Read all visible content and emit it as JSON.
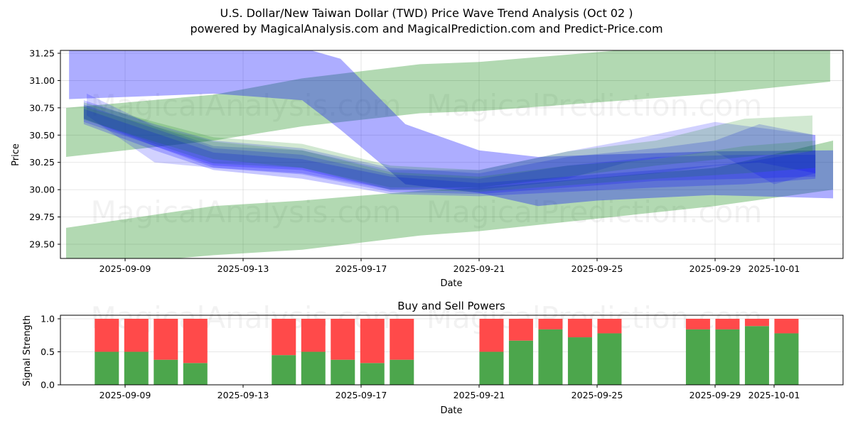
{
  "title_line1": "U.S. Dollar/New Taiwan Dollar (TWD) Price Wave Trend Analysis (Oct 02 )",
  "title_line2": "powered by MagicalAnalysis.com and MagicalPrediction.com and Predict-Price.com",
  "watermarks": [
    "MagicalAnalysis.com",
    "MagicalPrediction.com"
  ],
  "colors": {
    "blue_band": "#0000ff",
    "green_band": "#008000",
    "buy": "#4ca64c",
    "sell": "#ff4a4a"
  },
  "chart_data": [
    {
      "type": "area",
      "title": "",
      "xlabel": "Date",
      "ylabel": "Price",
      "ylim": [
        29.37,
        31.28
      ],
      "xlim_days_from_2025_09_09": [
        -2.2,
        24.35
      ],
      "yticks": [
        "29.50",
        "29.75",
        "30.00",
        "30.25",
        "30.50",
        "30.75",
        "31.00",
        "31.25"
      ],
      "ytick_values": [
        29.5,
        29.75,
        30.0,
        30.25,
        30.5,
        30.75,
        31.0,
        31.25
      ],
      "xticks": [
        "2025-09-09",
        "2025-09-13",
        "2025-09-17",
        "2025-09-21",
        "2025-09-25",
        "2025-09-29",
        "2025-10-01"
      ],
      "xtick_days": [
        0,
        4,
        8,
        12,
        16,
        20,
        22
      ],
      "grid": true,
      "bands": [
        {
          "name": "green-upper-channel",
          "color": "green",
          "opacity": 0.3,
          "x": [
            -2.0,
            3.0,
            6.0,
            10.0,
            12.0,
            20.0,
            23.9
          ],
          "upper": [
            30.75,
            30.87,
            31.02,
            31.15,
            31.17,
            31.35,
            31.28
          ],
          "lower": [
            30.3,
            30.45,
            30.58,
            30.7,
            30.72,
            30.88,
            30.99
          ]
        },
        {
          "name": "green-lower-channel",
          "color": "green",
          "opacity": 0.3,
          "x": [
            -2.0,
            3.0,
            6.0,
            10.0,
            12.0,
            20.0,
            24.0
          ],
          "upper": [
            29.65,
            29.85,
            29.9,
            29.99,
            30.02,
            30.2,
            30.45
          ],
          "lower": [
            29.28,
            29.4,
            29.45,
            29.58,
            29.62,
            29.85,
            30.0
          ]
        },
        {
          "name": "blue-wide-wave",
          "color": "blue",
          "opacity": 0.32,
          "x": [
            -1.9,
            3.0,
            6.0,
            7.3,
            9.5,
            12.0,
            14.0,
            16.0,
            19.9,
            24.0
          ],
          "upper": [
            31.3,
            31.32,
            31.3,
            31.2,
            30.6,
            30.36,
            30.3,
            30.32,
            30.35,
            30.36
          ],
          "lower": [
            30.83,
            30.88,
            30.82,
            30.55,
            30.05,
            29.97,
            29.85,
            29.9,
            29.95,
            29.92
          ]
        },
        {
          "name": "blue-wave-1",
          "color": "blue",
          "opacity": 0.18,
          "x": [
            -1.3,
            1.0,
            3.0,
            6.0,
            9.0,
            12.0,
            15.0,
            17.0,
            20.0,
            22.0,
            23.4
          ],
          "upper": [
            30.88,
            30.58,
            30.4,
            30.36,
            30.18,
            30.18,
            30.35,
            30.45,
            30.62,
            30.55,
            30.5
          ],
          "lower": [
            30.68,
            30.25,
            30.2,
            30.15,
            30.0,
            30.02,
            30.1,
            30.25,
            30.35,
            30.05,
            30.15
          ]
        },
        {
          "name": "blue-wave-2",
          "color": "blue",
          "opacity": 0.2,
          "x": [
            -1.4,
            1.0,
            3.0,
            6.0,
            9.0,
            12.0,
            15.0,
            18.0,
            20.0,
            21.5,
            23.4
          ],
          "upper": [
            30.82,
            30.6,
            30.45,
            30.38,
            30.2,
            30.15,
            30.3,
            30.38,
            30.45,
            30.6,
            30.5
          ],
          "lower": [
            30.65,
            30.4,
            30.22,
            30.18,
            30.0,
            30.0,
            30.08,
            30.15,
            30.22,
            30.25,
            30.15
          ]
        },
        {
          "name": "green-wave-1",
          "color": "green",
          "opacity": 0.18,
          "x": [
            -1.4,
            1.0,
            3.0,
            6.0,
            9.0,
            12.0,
            15.0,
            18.0,
            21.0,
            23.3
          ],
          "upper": [
            30.8,
            30.62,
            30.48,
            30.42,
            30.22,
            30.18,
            30.35,
            30.45,
            30.65,
            30.68
          ],
          "lower": [
            30.65,
            30.42,
            30.24,
            30.2,
            30.02,
            30.02,
            30.12,
            30.22,
            30.3,
            30.35
          ]
        },
        {
          "name": "blue-wave-3",
          "color": "blue",
          "opacity": 0.2,
          "x": [
            -1.4,
            1.0,
            3.0,
            6.0,
            9.0,
            12.0,
            15.0,
            18.0,
            21.0,
            23.4
          ],
          "upper": [
            30.78,
            30.56,
            30.38,
            30.32,
            30.14,
            30.1,
            30.22,
            30.3,
            30.32,
            30.32
          ],
          "lower": [
            30.62,
            30.4,
            30.2,
            30.14,
            29.98,
            29.96,
            30.02,
            30.08,
            30.1,
            30.12
          ]
        },
        {
          "name": "blue-wave-4",
          "color": "blue",
          "opacity": 0.22,
          "x": [
            -1.4,
            1.0,
            3.0,
            6.0,
            9.0,
            12.0,
            15.0,
            18.0,
            21.0,
            23.4
          ],
          "upper": [
            30.74,
            30.52,
            30.34,
            30.28,
            30.12,
            30.06,
            30.12,
            30.18,
            30.25,
            30.36
          ],
          "lower": [
            30.6,
            30.36,
            30.18,
            30.1,
            29.96,
            29.94,
            29.98,
            30.02,
            30.05,
            30.1
          ]
        },
        {
          "name": "green-wave-2",
          "color": "green",
          "opacity": 0.15,
          "x": [
            -1.4,
            1.0,
            3.0,
            6.0,
            9.0,
            12.0,
            15.0,
            18.0,
            21.0,
            23.4
          ],
          "upper": [
            30.76,
            30.58,
            30.44,
            30.36,
            30.16,
            30.12,
            30.22,
            30.28,
            30.4,
            30.45
          ],
          "lower": [
            30.64,
            30.44,
            30.28,
            30.2,
            30.0,
            29.98,
            30.04,
            30.1,
            30.15,
            30.2
          ]
        }
      ]
    },
    {
      "type": "bar",
      "title": "Buy and Sell Powers",
      "xlabel": "Date",
      "ylabel": "Signal Strength",
      "ylim": [
        0,
        1.05
      ],
      "yticks": [
        "0.0",
        "0.5",
        "1.0"
      ],
      "ytick_values": [
        0,
        0.5,
        1.0
      ],
      "xticks": [
        "2025-09-09",
        "2025-09-13",
        "2025-09-17",
        "2025-09-21",
        "2025-09-25",
        "2025-09-29",
        "2025-10-01"
      ],
      "xtick_days": [
        0,
        4,
        8,
        12,
        16,
        20,
        22
      ],
      "grid": true,
      "series": [
        {
          "name": "Buy",
          "color": "green"
        },
        {
          "name": "Sell",
          "color": "red"
        }
      ],
      "bar_days": [
        -0.62,
        0.38,
        1.38,
        2.38,
        5.38,
        6.38,
        7.38,
        8.38,
        9.38,
        12.42,
        13.42,
        14.42,
        15.42,
        16.42,
        19.42,
        20.42,
        21.42,
        22.42
      ],
      "buy": [
        0.5,
        0.5,
        0.38,
        0.33,
        0.45,
        0.5,
        0.38,
        0.33,
        0.38,
        0.5,
        0.67,
        0.84,
        0.72,
        0.78,
        0.84,
        0.84,
        0.89,
        0.78
      ],
      "sell": [
        0.5,
        0.5,
        0.62,
        0.67,
        0.55,
        0.5,
        0.62,
        0.67,
        0.62,
        0.5,
        0.33,
        0.16,
        0.28,
        0.22,
        0.16,
        0.16,
        0.11,
        0.22
      ]
    }
  ]
}
